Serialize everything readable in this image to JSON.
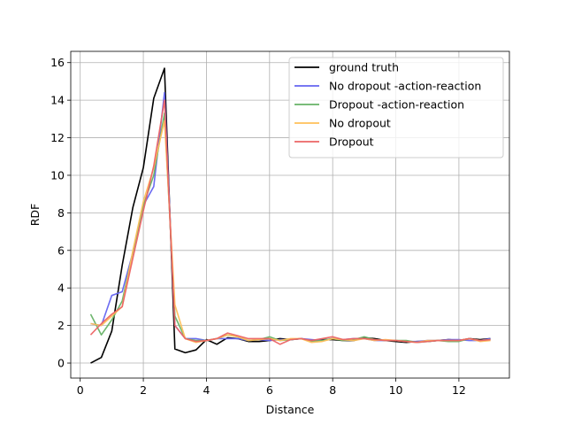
{
  "chart_data": {
    "type": "line",
    "title": "",
    "xlabel": "Distance",
    "ylabel": "RDF",
    "xlim": [
      -0.3,
      13.6
    ],
    "ylim": [
      -0.8,
      16.6
    ],
    "xticks": [
      0,
      2,
      4,
      6,
      8,
      10,
      12
    ],
    "yticks": [
      0,
      2,
      4,
      6,
      8,
      10,
      12,
      14,
      16
    ],
    "grid": true,
    "legend_position": "top-right",
    "x": [
      0.33,
      0.67,
      1.0,
      1.33,
      1.67,
      2.0,
      2.33,
      2.67,
      3.0,
      3.33,
      3.67,
      4.0,
      4.33,
      4.67,
      5.0,
      5.33,
      5.67,
      6.0,
      6.33,
      6.67,
      7.0,
      7.33,
      7.67,
      8.0,
      8.33,
      8.67,
      9.0,
      9.33,
      9.67,
      10.0,
      10.33,
      10.67,
      11.0,
      11.33,
      11.67,
      12.0,
      12.33,
      12.67,
      13.0
    ],
    "series": [
      {
        "name": "ground truth",
        "color": "#000000",
        "values": [
          0.0,
          0.3,
          1.7,
          5.2,
          8.3,
          10.4,
          14.1,
          15.7,
          0.75,
          0.55,
          0.7,
          1.25,
          1.0,
          1.35,
          1.3,
          1.15,
          1.15,
          1.2,
          1.3,
          1.25,
          1.3,
          1.2,
          1.25,
          1.25,
          1.2,
          1.2,
          1.35,
          1.3,
          1.2,
          1.15,
          1.1,
          1.15,
          1.15,
          1.2,
          1.25,
          1.2,
          1.3,
          1.25,
          1.3
        ]
      },
      {
        "name": "No dropout -action-reaction",
        "color": "#6464f0",
        "values": [
          2.1,
          2.0,
          3.6,
          3.8,
          5.9,
          8.4,
          9.4,
          14.4,
          2.0,
          1.3,
          1.3,
          1.2,
          1.3,
          1.3,
          1.3,
          1.2,
          1.25,
          1.2,
          1.25,
          1.25,
          1.3,
          1.25,
          1.2,
          1.3,
          1.25,
          1.3,
          1.3,
          1.2,
          1.2,
          1.2,
          1.15,
          1.15,
          1.2,
          1.2,
          1.25,
          1.25,
          1.2,
          1.2,
          1.3
        ]
      },
      {
        "name": "Dropout -action-reaction",
        "color": "#66b266",
        "values": [
          2.6,
          1.5,
          2.3,
          3.3,
          5.9,
          8.4,
          10.0,
          13.3,
          2.5,
          1.3,
          1.2,
          1.2,
          1.3,
          1.5,
          1.4,
          1.2,
          1.25,
          1.4,
          1.2,
          1.25,
          1.3,
          1.15,
          1.2,
          1.3,
          1.2,
          1.25,
          1.4,
          1.25,
          1.2,
          1.2,
          1.2,
          1.1,
          1.15,
          1.2,
          1.15,
          1.15,
          1.3,
          1.2,
          1.25
        ]
      },
      {
        "name": "No dropout",
        "color": "#ffc05a",
        "values": [
          2.1,
          2.0,
          2.5,
          3.0,
          6.0,
          8.6,
          10.4,
          12.9,
          3.1,
          1.3,
          1.1,
          1.2,
          1.3,
          1.5,
          1.4,
          1.2,
          1.25,
          1.3,
          1.2,
          1.3,
          1.3,
          1.1,
          1.15,
          1.3,
          1.25,
          1.2,
          1.3,
          1.2,
          1.25,
          1.2,
          1.15,
          1.1,
          1.2,
          1.2,
          1.2,
          1.2,
          1.3,
          1.15,
          1.2
        ]
      },
      {
        "name": "Dropout",
        "color": "#ec6464",
        "values": [
          1.5,
          2.1,
          2.6,
          3.0,
          5.6,
          8.1,
          10.5,
          14.0,
          2.0,
          1.3,
          1.15,
          1.2,
          1.3,
          1.6,
          1.45,
          1.3,
          1.3,
          1.3,
          1.0,
          1.25,
          1.3,
          1.2,
          1.3,
          1.4,
          1.25,
          1.3,
          1.3,
          1.25,
          1.2,
          1.2,
          1.15,
          1.1,
          1.15,
          1.2,
          1.2,
          1.2,
          1.3,
          1.2,
          1.25
        ]
      }
    ]
  }
}
